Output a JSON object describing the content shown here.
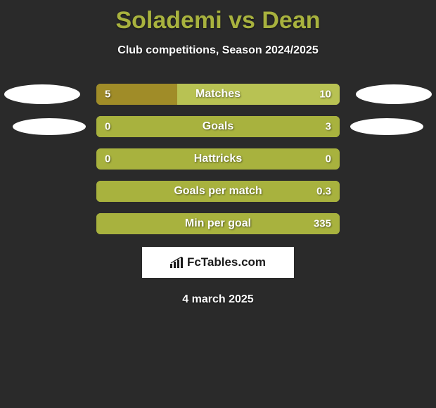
{
  "title": "Solademi vs Dean",
  "subtitle": "Club competitions, Season 2024/2025",
  "date": "4 march 2025",
  "logo_text": "FcTables.com",
  "colors": {
    "background": "#2a2a2a",
    "accent": "#a8b23e",
    "track_empty": "#b8c253",
    "fill_left": "#a08c28",
    "fill_right": "#a08c28",
    "oval": "#ffffff",
    "text": "#ffffff"
  },
  "ovals": {
    "row0_left": true,
    "row0_right": true,
    "row1_left": true,
    "row1_right": true
  },
  "stats": [
    {
      "label": "Matches",
      "left_value": "5",
      "right_value": "10",
      "left_pct": 33.3,
      "right_pct": 66.7,
      "left_color": "#a08c28",
      "right_color": "#b8c253"
    },
    {
      "label": "Goals",
      "left_value": "0",
      "right_value": "3",
      "left_pct": 0,
      "right_pct": 100,
      "left_color": "#a08c28",
      "right_color": "#a8b23e"
    },
    {
      "label": "Hattricks",
      "left_value": "0",
      "right_value": "0",
      "left_pct": 0,
      "right_pct": 0,
      "left_color": "#a08c28",
      "right_color": "#a8b23e",
      "track_color": "#a8b23e"
    },
    {
      "label": "Goals per match",
      "left_value": "",
      "right_value": "0.3",
      "left_pct": 0,
      "right_pct": 100,
      "left_color": "#a08c28",
      "right_color": "#a8b23e"
    },
    {
      "label": "Min per goal",
      "left_value": "",
      "right_value": "335",
      "left_pct": 0,
      "right_pct": 100,
      "left_color": "#a08c28",
      "right_color": "#a8b23e"
    }
  ]
}
